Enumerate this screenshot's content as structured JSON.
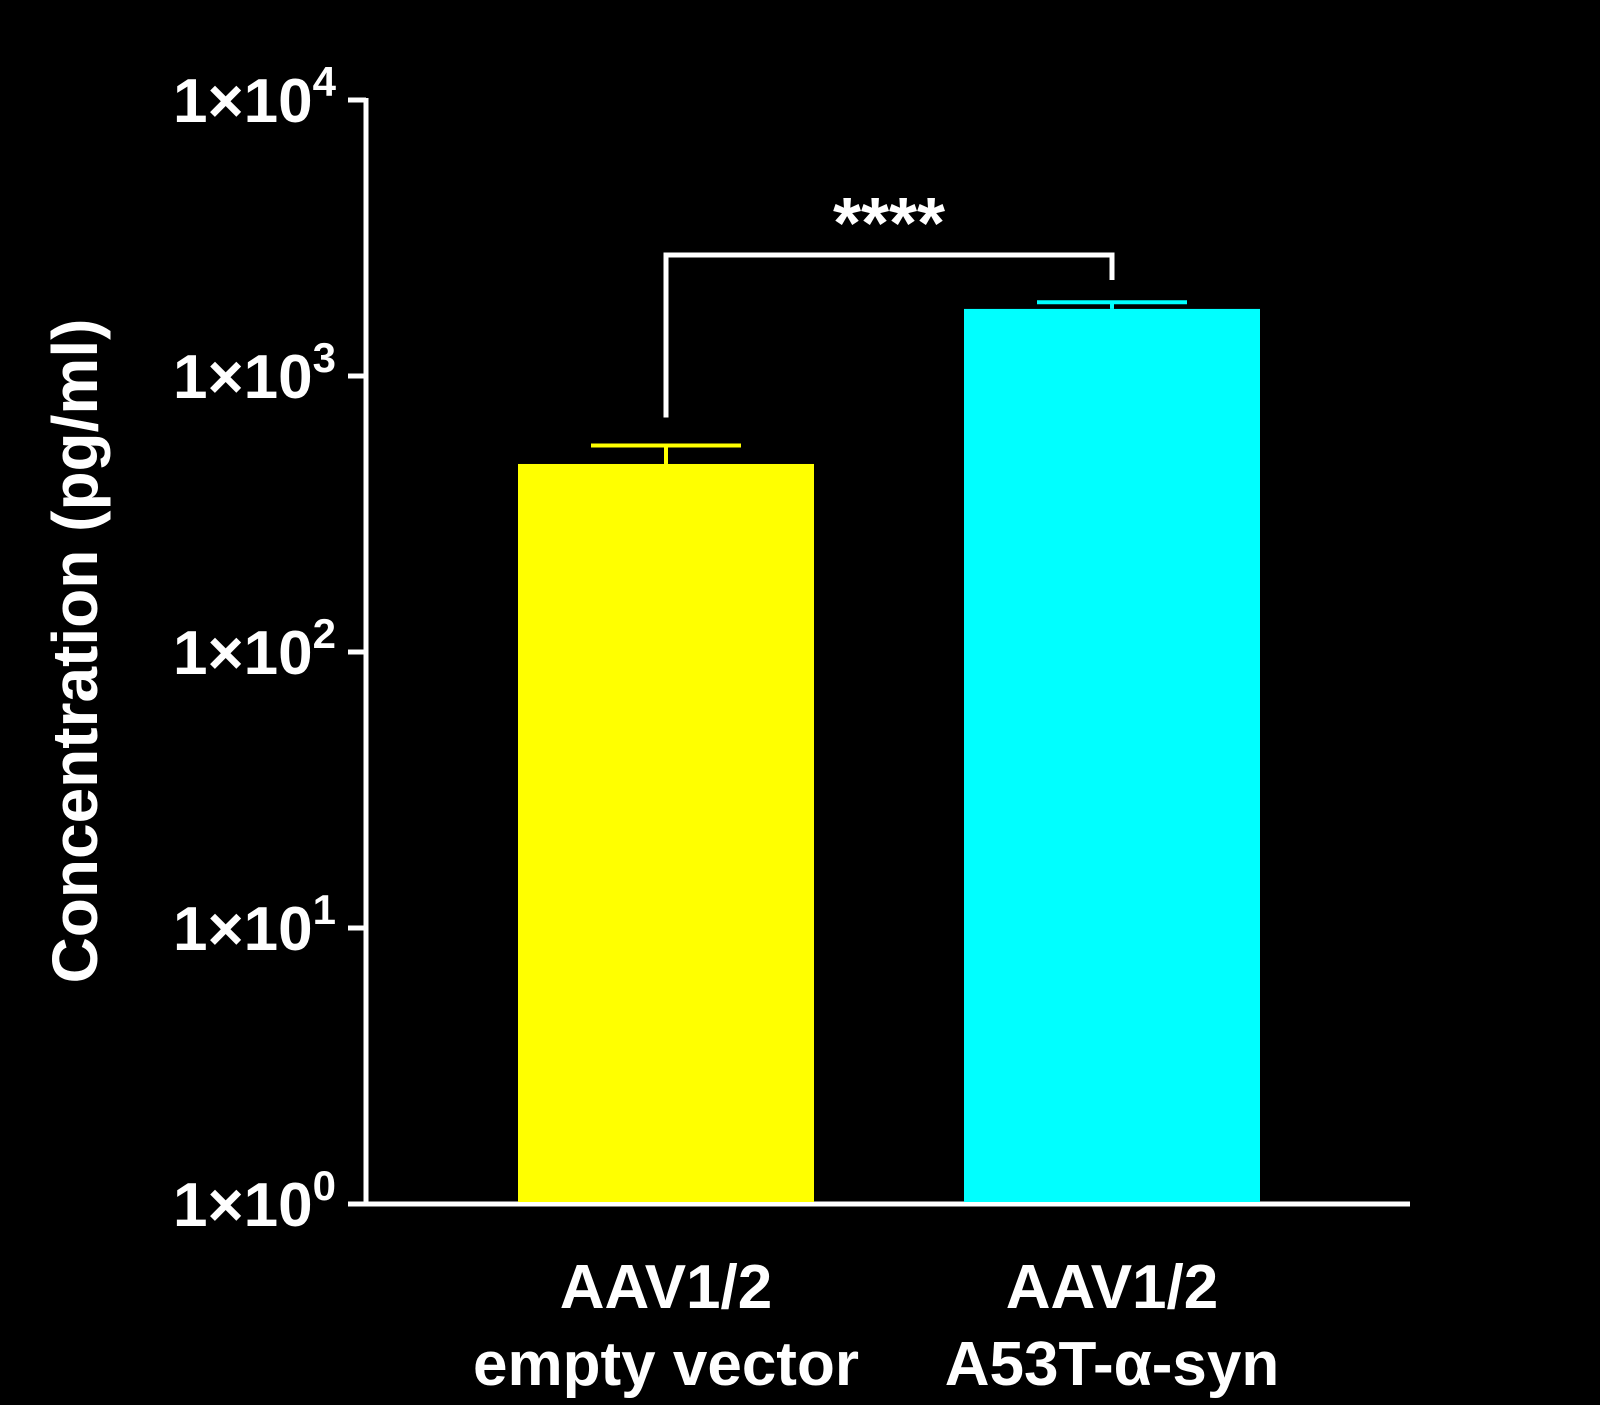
{
  "chart_data": {
    "type": "bar",
    "title": "",
    "xlabel": "",
    "ylabel": "Concentration (pg/ml)",
    "y_scale": "log10",
    "ylim": [
      1,
      10000
    ],
    "y_ticks": [
      {
        "value": 1,
        "base": "1×10",
        "exp": "0"
      },
      {
        "value": 10,
        "base": "1×10",
        "exp": "1"
      },
      {
        "value": 100,
        "base": "1×10",
        "exp": "2"
      },
      {
        "value": 1000,
        "base": "1×10",
        "exp": "3"
      },
      {
        "value": 10000,
        "base": "1×10",
        "exp": "4"
      }
    ],
    "categories": [
      {
        "line1": "AAV1/2",
        "line2": "empty vector"
      },
      {
        "line1": "AAV1/2",
        "line2": "A53T-α-syn"
      }
    ],
    "values": [
      480,
      1750
    ],
    "error_upper": [
      560,
      1850
    ],
    "colors": [
      "#FFFF00",
      "#00FFFF"
    ],
    "significance": {
      "from": 0,
      "to": 1,
      "label": "****"
    },
    "grid": false,
    "legend": "none"
  }
}
